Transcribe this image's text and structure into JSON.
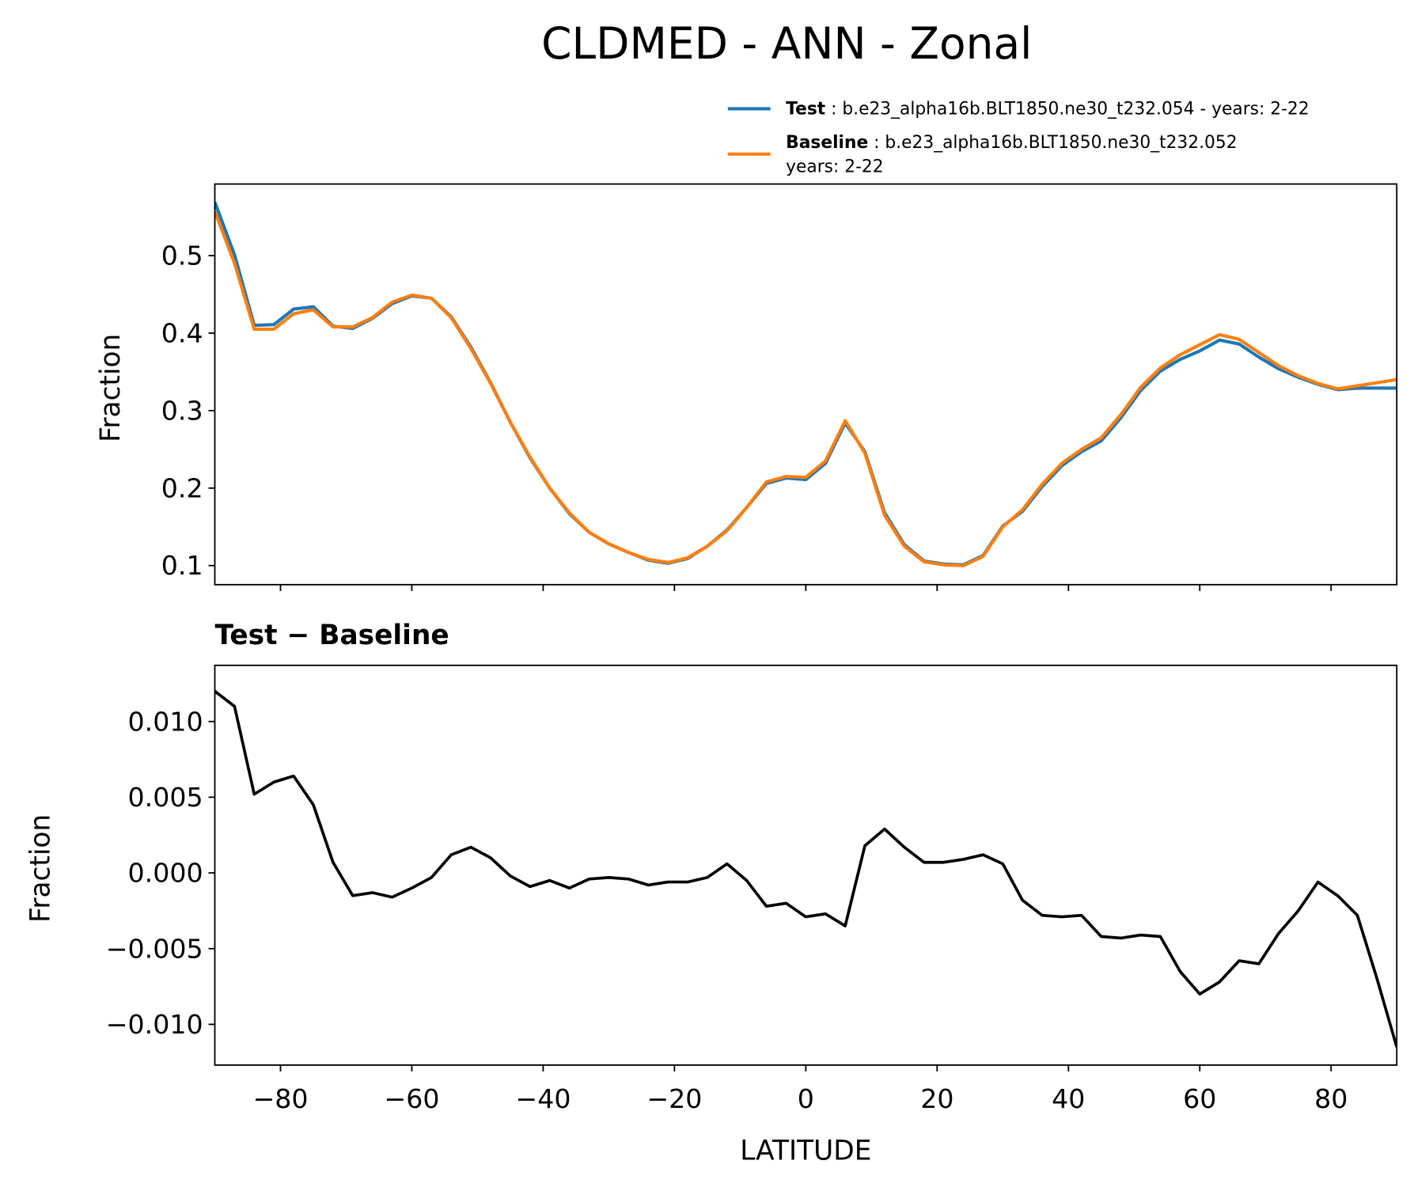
{
  "chart_data": [
    {
      "type": "line",
      "title": "CLDMED - ANN - Zonal",
      "ylabel": "Fraction",
      "x": [
        -90,
        -87,
        -84,
        -81,
        -78,
        -75,
        -72,
        -69,
        -66,
        -63,
        -60,
        -57,
        -54,
        -51,
        -48,
        -45,
        -42,
        -39,
        -36,
        -33,
        -30,
        -27,
        -24,
        -21,
        -18,
        -15,
        -12,
        -9,
        -6,
        -3,
        0,
        3,
        6,
        9,
        12,
        15,
        18,
        21,
        24,
        27,
        30,
        33,
        36,
        39,
        42,
        45,
        48,
        51,
        54,
        57,
        60,
        63,
        66,
        69,
        72,
        75,
        78,
        81,
        84,
        87,
        90
      ],
      "xlim": [
        -90,
        90
      ],
      "xticks": [
        -80,
        -60,
        -40,
        -20,
        0,
        20,
        40,
        60,
        80
      ],
      "ylim": [
        0.0754,
        0.5924
      ],
      "yticks": [
        0.1,
        0.2,
        0.3,
        0.4,
        0.5
      ],
      "legend": "upper right",
      "series": [
        {
          "name": "Test",
          "description": [
            "b.e23_alpha16b.BLT1850.ne30_t232.054 - years: 2-22"
          ],
          "color": "#1f77b4",
          "values": [
            0.569,
            0.501,
            0.41,
            0.411,
            0.431,
            0.434,
            0.409,
            0.406,
            0.419,
            0.438,
            0.448,
            0.445,
            0.421,
            0.382,
            0.336,
            0.285,
            0.239,
            0.2,
            0.167,
            0.143,
            0.128,
            0.117,
            0.107,
            0.103,
            0.109,
            0.125,
            0.146,
            0.175,
            0.206,
            0.213,
            0.211,
            0.232,
            0.284,
            0.247,
            0.168,
            0.127,
            0.106,
            0.102,
            0.101,
            0.113,
            0.151,
            0.17,
            0.202,
            0.229,
            0.247,
            0.261,
            0.291,
            0.326,
            0.351,
            0.366,
            0.377,
            0.391,
            0.386,
            0.369,
            0.354,
            0.343,
            0.334,
            0.327,
            0.329,
            0.329,
            0.329
          ]
        },
        {
          "name": "Baseline",
          "description": [
            "b.e23_alpha16b.BLT1850.ne30_t232.052",
            "years: 2-22"
          ],
          "color": "#ff7f0e",
          "values": [
            0.557,
            0.49,
            0.405,
            0.405,
            0.425,
            0.43,
            0.408,
            0.408,
            0.42,
            0.44,
            0.449,
            0.445,
            0.42,
            0.38,
            0.335,
            0.285,
            0.24,
            0.2,
            0.168,
            0.143,
            0.128,
            0.117,
            0.108,
            0.104,
            0.11,
            0.125,
            0.145,
            0.175,
            0.208,
            0.215,
            0.214,
            0.235,
            0.287,
            0.245,
            0.165,
            0.125,
            0.105,
            0.101,
            0.1,
            0.112,
            0.15,
            0.172,
            0.205,
            0.232,
            0.25,
            0.265,
            0.295,
            0.33,
            0.355,
            0.372,
            0.385,
            0.398,
            0.392,
            0.375,
            0.358,
            0.345,
            0.335,
            0.328,
            0.332,
            0.336,
            0.34
          ]
        }
      ]
    },
    {
      "type": "line",
      "title": "Test − Baseline",
      "ylabel": "Fraction",
      "xlabel": "LATITUDE",
      "x": [
        -90,
        -87,
        -84,
        -81,
        -78,
        -75,
        -72,
        -69,
        -66,
        -63,
        -60,
        -57,
        -54,
        -51,
        -48,
        -45,
        -42,
        -39,
        -36,
        -33,
        -30,
        -27,
        -24,
        -21,
        -18,
        -15,
        -12,
        -9,
        -6,
        -3,
        0,
        3,
        6,
        9,
        12,
        15,
        18,
        21,
        24,
        27,
        30,
        33,
        36,
        39,
        42,
        45,
        48,
        51,
        54,
        57,
        60,
        63,
        66,
        69,
        72,
        75,
        78,
        81,
        84,
        87,
        90
      ],
      "xlim": [
        -90,
        90
      ],
      "xticks": [
        {
          "value": -80,
          "label": "−80"
        },
        {
          "value": -60,
          "label": "−60"
        },
        {
          "value": -40,
          "label": "−40"
        },
        {
          "value": -20,
          "label": "−20"
        },
        0,
        20,
        40,
        60,
        80
      ],
      "ylim": [
        -0.01269,
        0.01371
      ],
      "yticks": [
        {
          "value": -0.01,
          "label": "−0.010"
        },
        {
          "value": -0.005,
          "label": "−0.005"
        },
        {
          "value": 0,
          "label": "0.000"
        },
        {
          "value": 0.005,
          "label": "0.005"
        },
        {
          "value": 0.01,
          "label": "0.010"
        }
      ],
      "color": "#000000",
      "values": [
        0.012,
        0.011,
        0.0052,
        0.006,
        0.0064,
        0.0045,
        0.0007,
        -0.0015,
        -0.0013,
        -0.0016,
        -0.001,
        -0.0003,
        0.0012,
        0.0017,
        0.001,
        -0.0002,
        -0.0009,
        -0.0005,
        -0.001,
        -0.0004,
        -0.0003,
        -0.0004,
        -0.0008,
        -0.0006,
        -0.0006,
        -0.0003,
        0.0006,
        -0.0005,
        -0.0022,
        -0.002,
        -0.0029,
        -0.0027,
        -0.0035,
        0.0018,
        0.0029,
        0.0017,
        0.0007,
        0.0007,
        0.0009,
        0.0012,
        0.0006,
        -0.0018,
        -0.0028,
        -0.0029,
        -0.0028,
        -0.0042,
        -0.0043,
        -0.0041,
        -0.0042,
        -0.0065,
        -0.008,
        -0.0072,
        -0.0058,
        -0.006,
        -0.004,
        -0.0025,
        -0.0006,
        -0.0015,
        -0.0028,
        -0.007,
        -0.0115
      ]
    }
  ]
}
